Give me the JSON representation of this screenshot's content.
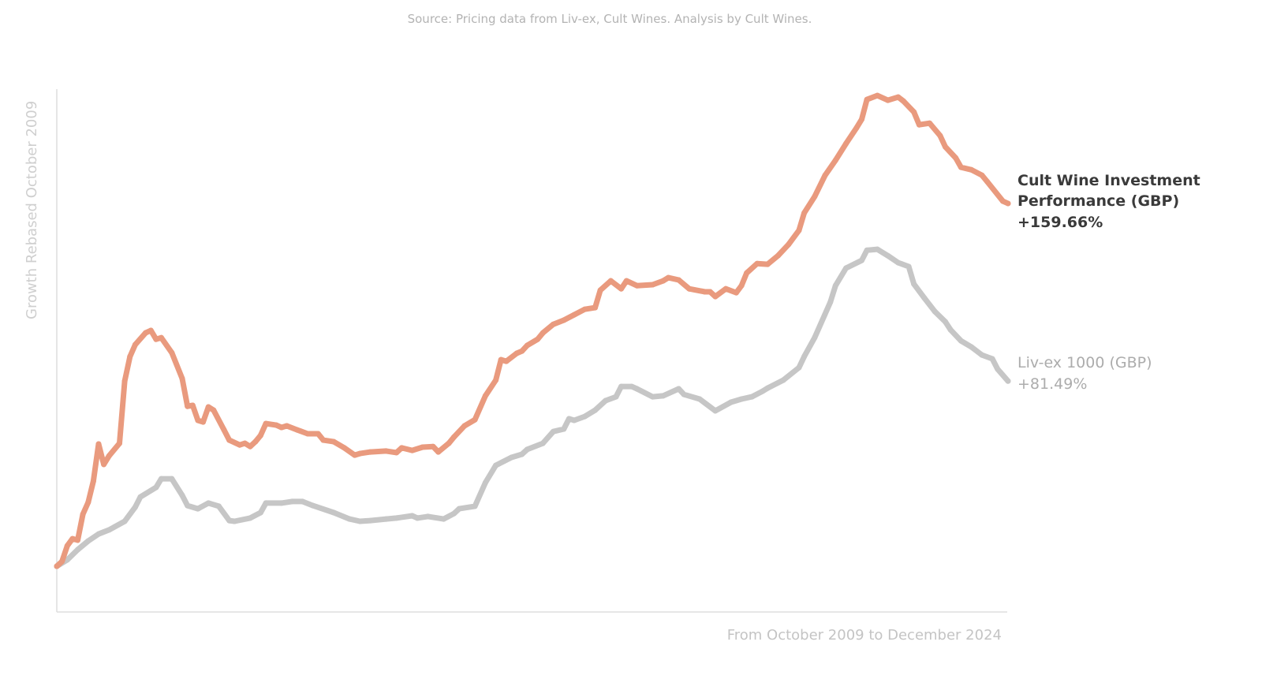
{
  "chart_data": {
    "type": "line",
    "source": "Source: Pricing data from Liv-ex, Cult Wines. Analysis by Cult Wines.",
    "ylabel": "Growth Rebased October 2009",
    "xlabel": "From October 2009 to December 2024",
    "xlim": [
      "2009-10",
      "2024-12"
    ],
    "y_unit": "%",
    "grid": false,
    "legend": "inline-right-labels",
    "series": [
      {
        "name": "Cult Wine Investment Performance (GBP)",
        "name_lines": [
          "Cult Wine Investment",
          "Performance (GBP)"
        ],
        "end_label": "+159.66%",
        "color": "#e99a7e",
        "x": [
          "2009-10",
          "2009-11",
          "2009-12",
          "2010-01",
          "2010-02",
          "2010-03",
          "2010-04",
          "2010-05",
          "2010-06",
          "2010-07",
          "2010-08",
          "2010-10",
          "2010-11",
          "2010-12",
          "2011-01",
          "2011-03",
          "2011-04",
          "2011-05",
          "2011-06",
          "2011-08",
          "2011-10",
          "2011-11",
          "2011-12",
          "2012-01",
          "2012-02",
          "2012-03",
          "2012-04",
          "2012-06",
          "2012-07",
          "2012-09",
          "2012-10",
          "2012-11",
          "2012-12",
          "2013-01",
          "2013-02",
          "2013-04",
          "2013-05",
          "2013-06",
          "2013-08",
          "2013-10",
          "2013-12",
          "2014-01",
          "2014-03",
          "2014-05",
          "2014-07",
          "2014-08",
          "2014-10",
          "2015-01",
          "2015-03",
          "2015-04",
          "2015-06",
          "2015-08",
          "2015-10",
          "2015-11",
          "2016-01",
          "2016-02",
          "2016-04",
          "2016-06",
          "2016-08",
          "2016-10",
          "2016-11",
          "2016-12",
          "2017-02",
          "2017-03",
          "2017-04",
          "2017-06",
          "2017-07",
          "2017-09",
          "2017-11",
          "2018-01",
          "2018-03",
          "2018-05",
          "2018-06",
          "2018-08",
          "2018-10",
          "2018-11",
          "2019-01",
          "2019-04",
          "2019-06",
          "2019-07",
          "2019-09",
          "2019-11",
          "2020-02",
          "2020-03",
          "2020-04",
          "2020-06",
          "2020-08",
          "2020-09",
          "2020-10",
          "2020-12",
          "2021-02",
          "2021-04",
          "2021-06",
          "2021-08",
          "2021-09",
          "2021-11",
          "2022-01",
          "2022-03",
          "2022-05",
          "2022-07",
          "2022-08",
          "2022-09",
          "2022-11",
          "2023-01",
          "2023-03",
          "2023-04",
          "2023-06",
          "2023-07",
          "2023-09",
          "2023-11",
          "2023-12",
          "2024-02",
          "2024-03",
          "2024-05",
          "2024-07",
          "2024-08",
          "2024-11",
          "2024-12"
        ],
        "y": [
          0,
          2.1,
          9.0,
          12.1,
          11.5,
          22.9,
          28.1,
          37.5,
          53.8,
          44.8,
          48.6,
          54.1,
          81.5,
          92.3,
          97.5,
          102.7,
          103.8,
          99.9,
          100.6,
          94.0,
          82.6,
          70.4,
          70.8,
          64.2,
          63.5,
          70.1,
          68.7,
          60.0,
          55.5,
          53.4,
          54.1,
          52.7,
          54.8,
          57.6,
          62.8,
          62.1,
          61.1,
          61.8,
          60.0,
          58.3,
          58.3,
          55.5,
          54.8,
          52.1,
          48.9,
          49.6,
          50.3,
          50.7,
          50.0,
          52.1,
          51.0,
          52.4,
          52.7,
          50.3,
          54.1,
          56.9,
          61.8,
          64.5,
          75.0,
          81.9,
          90.9,
          90.2,
          93.7,
          94.7,
          97.2,
          99.9,
          102.7,
          106.5,
          108.3,
          110.7,
          113.1,
          113.8,
          121.5,
          125.6,
          122.1,
          125.6,
          123.5,
          123.9,
          125.6,
          127.0,
          126.0,
          122.1,
          120.8,
          120.8,
          118.7,
          122.1,
          120.4,
          123.5,
          129.1,
          133.2,
          132.9,
          136.7,
          141.6,
          147.8,
          155.5,
          162.7,
          172.1,
          178.7,
          186.0,
          192.9,
          196.7,
          205.4,
          207.2,
          205.1,
          206.5,
          204.7,
          199.9,
          194.3,
          195.0,
          189.5,
          184.6,
          179.7,
          175.6,
          174.5,
          172.1,
          169.3,
          160.7,
          159.66
        ]
      },
      {
        "name": "Liv-ex 1000 (GBP)",
        "name_lines": [
          "Liv-ex 1000 (GBP)"
        ],
        "end_label": "+81.49%",
        "color": "#c6c6c6",
        "x": [
          "2009-10",
          "2009-12",
          "2010-02",
          "2010-04",
          "2010-06",
          "2010-08",
          "2010-11",
          "2011-01",
          "2011-02",
          "2011-05",
          "2011-06",
          "2011-08",
          "2011-10",
          "2011-11",
          "2012-01",
          "2012-03",
          "2012-05",
          "2012-07",
          "2012-08",
          "2012-11",
          "2013-01",
          "2013-02",
          "2013-05",
          "2013-07",
          "2013-09",
          "2013-11",
          "2014-03",
          "2014-06",
          "2014-08",
          "2014-10",
          "2015-01",
          "2015-03",
          "2015-06",
          "2015-07",
          "2015-09",
          "2015-12",
          "2016-02",
          "2016-03",
          "2016-06",
          "2016-08",
          "2016-10",
          "2017-01",
          "2017-03",
          "2017-04",
          "2017-07",
          "2017-09",
          "2017-11",
          "2017-12",
          "2018-01",
          "2018-03",
          "2018-05",
          "2018-07",
          "2018-09",
          "2018-10",
          "2018-12",
          "2019-01",
          "2019-04",
          "2019-06",
          "2019-09",
          "2019-10",
          "2020-01",
          "2020-04",
          "2020-07",
          "2020-09",
          "2020-11",
          "2021-01",
          "2021-02",
          "2021-05",
          "2021-08",
          "2021-09",
          "2021-11",
          "2022-02",
          "2022-03",
          "2022-05",
          "2022-08",
          "2022-09",
          "2022-11",
          "2023-01",
          "2023-03",
          "2023-05",
          "2023-06",
          "2023-08",
          "2023-10",
          "2023-12",
          "2024-01",
          "2024-03",
          "2024-05",
          "2024-07",
          "2024-09",
          "2024-10",
          "2024-12"
        ],
        "y": [
          0,
          2.8,
          7.3,
          11.1,
          14.2,
          16.0,
          19.8,
          26.0,
          30.5,
          34.7,
          38.5,
          38.5,
          31.2,
          26.7,
          25.3,
          27.8,
          26.4,
          20.1,
          19.8,
          21.2,
          23.6,
          27.8,
          27.8,
          28.5,
          28.5,
          26.7,
          23.6,
          20.8,
          19.8,
          20.1,
          20.8,
          21.2,
          22.2,
          21.2,
          21.9,
          20.8,
          23.2,
          25.3,
          26.4,
          36.8,
          44.4,
          47.9,
          49.3,
          51.4,
          54.1,
          59.3,
          60.4,
          64.9,
          64.2,
          65.9,
          68.7,
          72.9,
          74.6,
          79.1,
          79.1,
          78.1,
          74.6,
          75.0,
          78.1,
          75.6,
          73.6,
          68.4,
          72.2,
          73.6,
          74.6,
          77.0,
          78.4,
          81.9,
          87.4,
          92.3,
          100.6,
          116.2,
          123.5,
          131.2,
          134.6,
          139.1,
          139.5,
          136.7,
          133.6,
          131.9,
          124.2,
          118.0,
          112.1,
          107.6,
          104.1,
          99.2,
          96.5,
          93.0,
          91.3,
          86.8,
          81.49
        ]
      }
    ]
  }
}
